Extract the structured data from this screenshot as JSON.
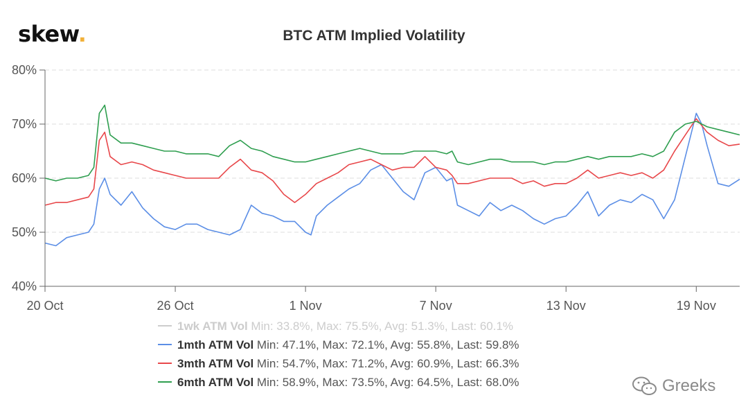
{
  "brand": {
    "logo_text": "skew",
    "logo_dot": ".",
    "accent_color": "#f2b13a"
  },
  "watermark": {
    "icon": "wechat-icon",
    "text": "Greeks"
  },
  "chart_data": {
    "type": "line",
    "title": "BTC ATM Implied Volatility",
    "xlabel": "",
    "ylabel": "",
    "x_range": [
      "2020-10-20",
      "2020-11-21"
    ],
    "x_ticks": [
      {
        "date": "2020-10-20",
        "label": "20 Oct"
      },
      {
        "date": "2020-10-26",
        "label": "26 Oct"
      },
      {
        "date": "2020-11-01",
        "label": "1 Nov"
      },
      {
        "date": "2020-11-07",
        "label": "7 Nov"
      },
      {
        "date": "2020-11-13",
        "label": "13 Nov"
      },
      {
        "date": "2020-11-19",
        "label": "19 Nov"
      }
    ],
    "ylim": [
      40,
      80
    ],
    "y_ticks": [
      {
        "value": 40,
        "label": "40%"
      },
      {
        "value": 50,
        "label": "50%"
      },
      {
        "value": 60,
        "label": "60%"
      },
      {
        "value": 70,
        "label": "70%"
      },
      {
        "value": 80,
        "label": "80%"
      }
    ],
    "grid": "horizontal dashed",
    "legend_position": "bottom",
    "series": [
      {
        "name": "1wk ATM Vol",
        "stats": "Min: 33.8%, Max: 75.5%, Avg: 51.3%, Last: 60.1%",
        "color": "#cccccc",
        "visible": false,
        "points": []
      },
      {
        "name": "1mth ATM Vol",
        "stats": "Min: 47.1%, Max: 72.1%, Avg: 55.8%, Last: 59.8%",
        "color": "#5b8ee6",
        "visible": true,
        "points": [
          [
            "2020-10-20",
            48.0
          ],
          [
            "2020-10-20T12:00",
            47.5
          ],
          [
            "2020-10-21",
            49.0
          ],
          [
            "2020-10-21T12:00",
            49.5
          ],
          [
            "2020-10-22",
            50.0
          ],
          [
            "2020-10-22T06:00",
            51.5
          ],
          [
            "2020-10-22T12:00",
            58.0
          ],
          [
            "2020-10-22T18:00",
            60.0
          ],
          [
            "2020-10-23",
            57.0
          ],
          [
            "2020-10-23T12:00",
            55.0
          ],
          [
            "2020-10-24",
            57.5
          ],
          [
            "2020-10-24T12:00",
            54.5
          ],
          [
            "2020-10-25",
            52.5
          ],
          [
            "2020-10-25T12:00",
            51.0
          ],
          [
            "2020-10-26",
            50.5
          ],
          [
            "2020-10-26T12:00",
            51.5
          ],
          [
            "2020-10-27",
            51.5
          ],
          [
            "2020-10-27T12:00",
            50.5
          ],
          [
            "2020-10-28",
            50.0
          ],
          [
            "2020-10-28T12:00",
            49.5
          ],
          [
            "2020-10-29",
            50.5
          ],
          [
            "2020-10-29T12:00",
            55.0
          ],
          [
            "2020-10-30",
            53.5
          ],
          [
            "2020-10-30T12:00",
            53.0
          ],
          [
            "2020-10-31",
            52.0
          ],
          [
            "2020-10-31T12:00",
            52.0
          ],
          [
            "2020-11-01",
            50.0
          ],
          [
            "2020-11-01T06:00",
            49.5
          ],
          [
            "2020-11-01T12:00",
            53.0
          ],
          [
            "2020-11-02",
            55.0
          ],
          [
            "2020-11-02T12:00",
            56.5
          ],
          [
            "2020-11-03",
            58.0
          ],
          [
            "2020-11-03T12:00",
            59.0
          ],
          [
            "2020-11-04",
            61.5
          ],
          [
            "2020-11-04T12:00",
            62.5
          ],
          [
            "2020-11-05",
            60.0
          ],
          [
            "2020-11-05T12:00",
            57.5
          ],
          [
            "2020-11-06",
            56.0
          ],
          [
            "2020-11-06T12:00",
            61.0
          ],
          [
            "2020-11-07",
            62.0
          ],
          [
            "2020-11-07T12:00",
            59.5
          ],
          [
            "2020-11-07T18:00",
            60.0
          ],
          [
            "2020-11-08",
            55.0
          ],
          [
            "2020-11-08T12:00",
            54.0
          ],
          [
            "2020-11-09",
            53.0
          ],
          [
            "2020-11-09T12:00",
            55.5
          ],
          [
            "2020-11-10",
            54.0
          ],
          [
            "2020-11-10T12:00",
            55.0
          ],
          [
            "2020-11-11",
            54.0
          ],
          [
            "2020-11-11T12:00",
            52.5
          ],
          [
            "2020-11-12",
            51.5
          ],
          [
            "2020-11-12T12:00",
            52.5
          ],
          [
            "2020-11-13",
            53.0
          ],
          [
            "2020-11-13T12:00",
            55.0
          ],
          [
            "2020-11-14",
            57.5
          ],
          [
            "2020-11-14T12:00",
            53.0
          ],
          [
            "2020-11-15",
            55.0
          ],
          [
            "2020-11-15T12:00",
            56.0
          ],
          [
            "2020-11-16",
            55.5
          ],
          [
            "2020-11-16T12:00",
            57.0
          ],
          [
            "2020-11-17",
            56.0
          ],
          [
            "2020-11-17T12:00",
            52.5
          ],
          [
            "2020-11-18",
            56.0
          ],
          [
            "2020-11-18T06:00",
            60.0
          ],
          [
            "2020-11-18T12:00",
            64.0
          ],
          [
            "2020-11-18T18:00",
            68.0
          ],
          [
            "2020-11-19",
            72.0
          ],
          [
            "2020-11-19T06:00",
            70.0
          ],
          [
            "2020-11-19T12:00",
            66.0
          ],
          [
            "2020-11-20",
            59.0
          ],
          [
            "2020-11-20T12:00",
            58.5
          ],
          [
            "2020-11-21",
            59.8
          ]
        ]
      },
      {
        "name": "3mth ATM Vol",
        "stats": "Min: 54.7%, Max: 71.2%, Avg: 60.9%, Last: 66.3%",
        "color": "#e8474a",
        "visible": true,
        "points": [
          [
            "2020-10-20",
            55.0
          ],
          [
            "2020-10-20T12:00",
            55.5
          ],
          [
            "2020-10-21",
            55.5
          ],
          [
            "2020-10-21T12:00",
            56.0
          ],
          [
            "2020-10-22",
            56.5
          ],
          [
            "2020-10-22T06:00",
            58.0
          ],
          [
            "2020-10-22T12:00",
            67.0
          ],
          [
            "2020-10-22T18:00",
            68.5
          ],
          [
            "2020-10-23",
            64.0
          ],
          [
            "2020-10-23T12:00",
            62.5
          ],
          [
            "2020-10-24",
            63.0
          ],
          [
            "2020-10-24T12:00",
            62.5
          ],
          [
            "2020-10-25",
            61.5
          ],
          [
            "2020-10-25T12:00",
            61.0
          ],
          [
            "2020-10-26",
            60.5
          ],
          [
            "2020-10-26T12:00",
            60.0
          ],
          [
            "2020-10-27",
            60.0
          ],
          [
            "2020-10-27T12:00",
            60.0
          ],
          [
            "2020-10-28",
            60.0
          ],
          [
            "2020-10-28T12:00",
            62.0
          ],
          [
            "2020-10-29",
            63.5
          ],
          [
            "2020-10-29T12:00",
            61.5
          ],
          [
            "2020-10-30",
            61.0
          ],
          [
            "2020-10-30T12:00",
            59.5
          ],
          [
            "2020-10-31",
            57.0
          ],
          [
            "2020-10-31T12:00",
            55.5
          ],
          [
            "2020-11-01",
            57.0
          ],
          [
            "2020-11-01T12:00",
            59.0
          ],
          [
            "2020-11-02",
            60.0
          ],
          [
            "2020-11-02T12:00",
            61.0
          ],
          [
            "2020-11-03",
            62.5
          ],
          [
            "2020-11-03T12:00",
            63.0
          ],
          [
            "2020-11-04",
            63.5
          ],
          [
            "2020-11-04T12:00",
            62.5
          ],
          [
            "2020-11-05",
            61.5
          ],
          [
            "2020-11-05T12:00",
            62.0
          ],
          [
            "2020-11-06",
            62.0
          ],
          [
            "2020-11-06T12:00",
            64.0
          ],
          [
            "2020-11-07",
            62.0
          ],
          [
            "2020-11-07T12:00",
            61.5
          ],
          [
            "2020-11-07T18:00",
            60.5
          ],
          [
            "2020-11-08",
            59.0
          ],
          [
            "2020-11-08T12:00",
            59.0
          ],
          [
            "2020-11-09",
            59.5
          ],
          [
            "2020-11-09T12:00",
            60.0
          ],
          [
            "2020-11-10",
            60.0
          ],
          [
            "2020-11-10T12:00",
            60.0
          ],
          [
            "2020-11-11",
            59.0
          ],
          [
            "2020-11-11T12:00",
            59.5
          ],
          [
            "2020-11-12",
            58.5
          ],
          [
            "2020-11-12T12:00",
            59.0
          ],
          [
            "2020-11-13",
            59.0
          ],
          [
            "2020-11-13T12:00",
            60.0
          ],
          [
            "2020-11-14",
            61.5
          ],
          [
            "2020-11-14T12:00",
            60.0
          ],
          [
            "2020-11-15",
            60.5
          ],
          [
            "2020-11-15T12:00",
            61.0
          ],
          [
            "2020-11-16",
            60.5
          ],
          [
            "2020-11-16T12:00",
            61.0
          ],
          [
            "2020-11-17",
            60.0
          ],
          [
            "2020-11-17T12:00",
            61.5
          ],
          [
            "2020-11-18",
            65.0
          ],
          [
            "2020-11-18T12:00",
            68.0
          ],
          [
            "2020-11-19",
            71.0
          ],
          [
            "2020-11-19T12:00",
            68.5
          ],
          [
            "2020-11-20",
            67.0
          ],
          [
            "2020-11-20T12:00",
            66.0
          ],
          [
            "2020-11-21",
            66.3
          ]
        ]
      },
      {
        "name": "6mth ATM Vol",
        "stats": "Min: 58.9%, Max: 73.5%, Avg: 64.5%, Last: 68.0%",
        "color": "#2e9e4f",
        "visible": true,
        "points": [
          [
            "2020-10-20",
            60.0
          ],
          [
            "2020-10-20T12:00",
            59.5
          ],
          [
            "2020-10-21",
            60.0
          ],
          [
            "2020-10-21T12:00",
            60.0
          ],
          [
            "2020-10-22",
            60.5
          ],
          [
            "2020-10-22T06:00",
            62.0
          ],
          [
            "2020-10-22T12:00",
            72.0
          ],
          [
            "2020-10-22T18:00",
            73.5
          ],
          [
            "2020-10-23",
            68.0
          ],
          [
            "2020-10-23T12:00",
            66.5
          ],
          [
            "2020-10-24",
            66.5
          ],
          [
            "2020-10-24T12:00",
            66.0
          ],
          [
            "2020-10-25",
            65.5
          ],
          [
            "2020-10-25T12:00",
            65.0
          ],
          [
            "2020-10-26",
            65.0
          ],
          [
            "2020-10-26T12:00",
            64.5
          ],
          [
            "2020-10-27",
            64.5
          ],
          [
            "2020-10-27T12:00",
            64.5
          ],
          [
            "2020-10-28",
            64.0
          ],
          [
            "2020-10-28T12:00",
            66.0
          ],
          [
            "2020-10-29",
            67.0
          ],
          [
            "2020-10-29T12:00",
            65.5
          ],
          [
            "2020-10-30",
            65.0
          ],
          [
            "2020-10-30T12:00",
            64.0
          ],
          [
            "2020-10-31",
            63.5
          ],
          [
            "2020-10-31T12:00",
            63.0
          ],
          [
            "2020-11-01",
            63.0
          ],
          [
            "2020-11-01T12:00",
            63.5
          ],
          [
            "2020-11-02",
            64.0
          ],
          [
            "2020-11-02T12:00",
            64.5
          ],
          [
            "2020-11-03",
            65.0
          ],
          [
            "2020-11-03T12:00",
            65.5
          ],
          [
            "2020-11-04",
            65.0
          ],
          [
            "2020-11-04T12:00",
            64.5
          ],
          [
            "2020-11-05",
            64.5
          ],
          [
            "2020-11-05T12:00",
            64.5
          ],
          [
            "2020-11-06",
            65.0
          ],
          [
            "2020-11-06T12:00",
            65.0
          ],
          [
            "2020-11-07",
            65.0
          ],
          [
            "2020-11-07T12:00",
            64.5
          ],
          [
            "2020-11-07T18:00",
            65.0
          ],
          [
            "2020-11-08",
            63.0
          ],
          [
            "2020-11-08T12:00",
            62.5
          ],
          [
            "2020-11-09",
            63.0
          ],
          [
            "2020-11-09T12:00",
            63.5
          ],
          [
            "2020-11-10",
            63.5
          ],
          [
            "2020-11-10T12:00",
            63.0
          ],
          [
            "2020-11-11",
            63.0
          ],
          [
            "2020-11-11T12:00",
            63.0
          ],
          [
            "2020-11-12",
            62.5
          ],
          [
            "2020-11-12T12:00",
            63.0
          ],
          [
            "2020-11-13",
            63.0
          ],
          [
            "2020-11-13T12:00",
            63.5
          ],
          [
            "2020-11-14",
            64.0
          ],
          [
            "2020-11-14T12:00",
            63.5
          ],
          [
            "2020-11-15",
            64.0
          ],
          [
            "2020-11-15T12:00",
            64.0
          ],
          [
            "2020-11-16",
            64.0
          ],
          [
            "2020-11-16T12:00",
            64.5
          ],
          [
            "2020-11-17",
            64.0
          ],
          [
            "2020-11-17T12:00",
            65.0
          ],
          [
            "2020-11-18",
            68.5
          ],
          [
            "2020-11-18T12:00",
            70.0
          ],
          [
            "2020-11-19",
            70.5
          ],
          [
            "2020-11-19T12:00",
            69.5
          ],
          [
            "2020-11-20",
            69.0
          ],
          [
            "2020-11-20T12:00",
            68.5
          ],
          [
            "2020-11-21",
            68.0
          ]
        ]
      }
    ]
  }
}
